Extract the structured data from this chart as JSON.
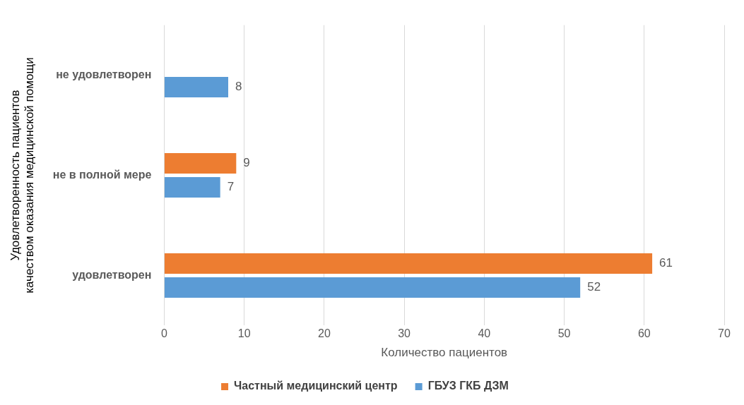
{
  "chart_data": {
    "type": "bar",
    "orientation": "horizontal",
    "categories": [
      "не удовлетворен",
      "не в полной мере",
      "удовлетворен"
    ],
    "series": [
      {
        "name": "Частный медицинский центр",
        "color": "#ed7d31",
        "values": [
          null,
          9,
          61
        ]
      },
      {
        "name": "ГБУЗ ГКБ ДЗМ",
        "color": "#5b9bd5",
        "values": [
          8,
          7,
          52
        ]
      }
    ],
    "xlim": [
      0,
      70
    ],
    "xticks": [
      0,
      10,
      20,
      30,
      40,
      50,
      60,
      70
    ],
    "xlabel": "Количество пациентов",
    "ylabel": "Удовлетворенность пациентов\nкачеством оказания медицинской помощи",
    "grid": "x",
    "legend": "bottom",
    "data_labels": true
  }
}
